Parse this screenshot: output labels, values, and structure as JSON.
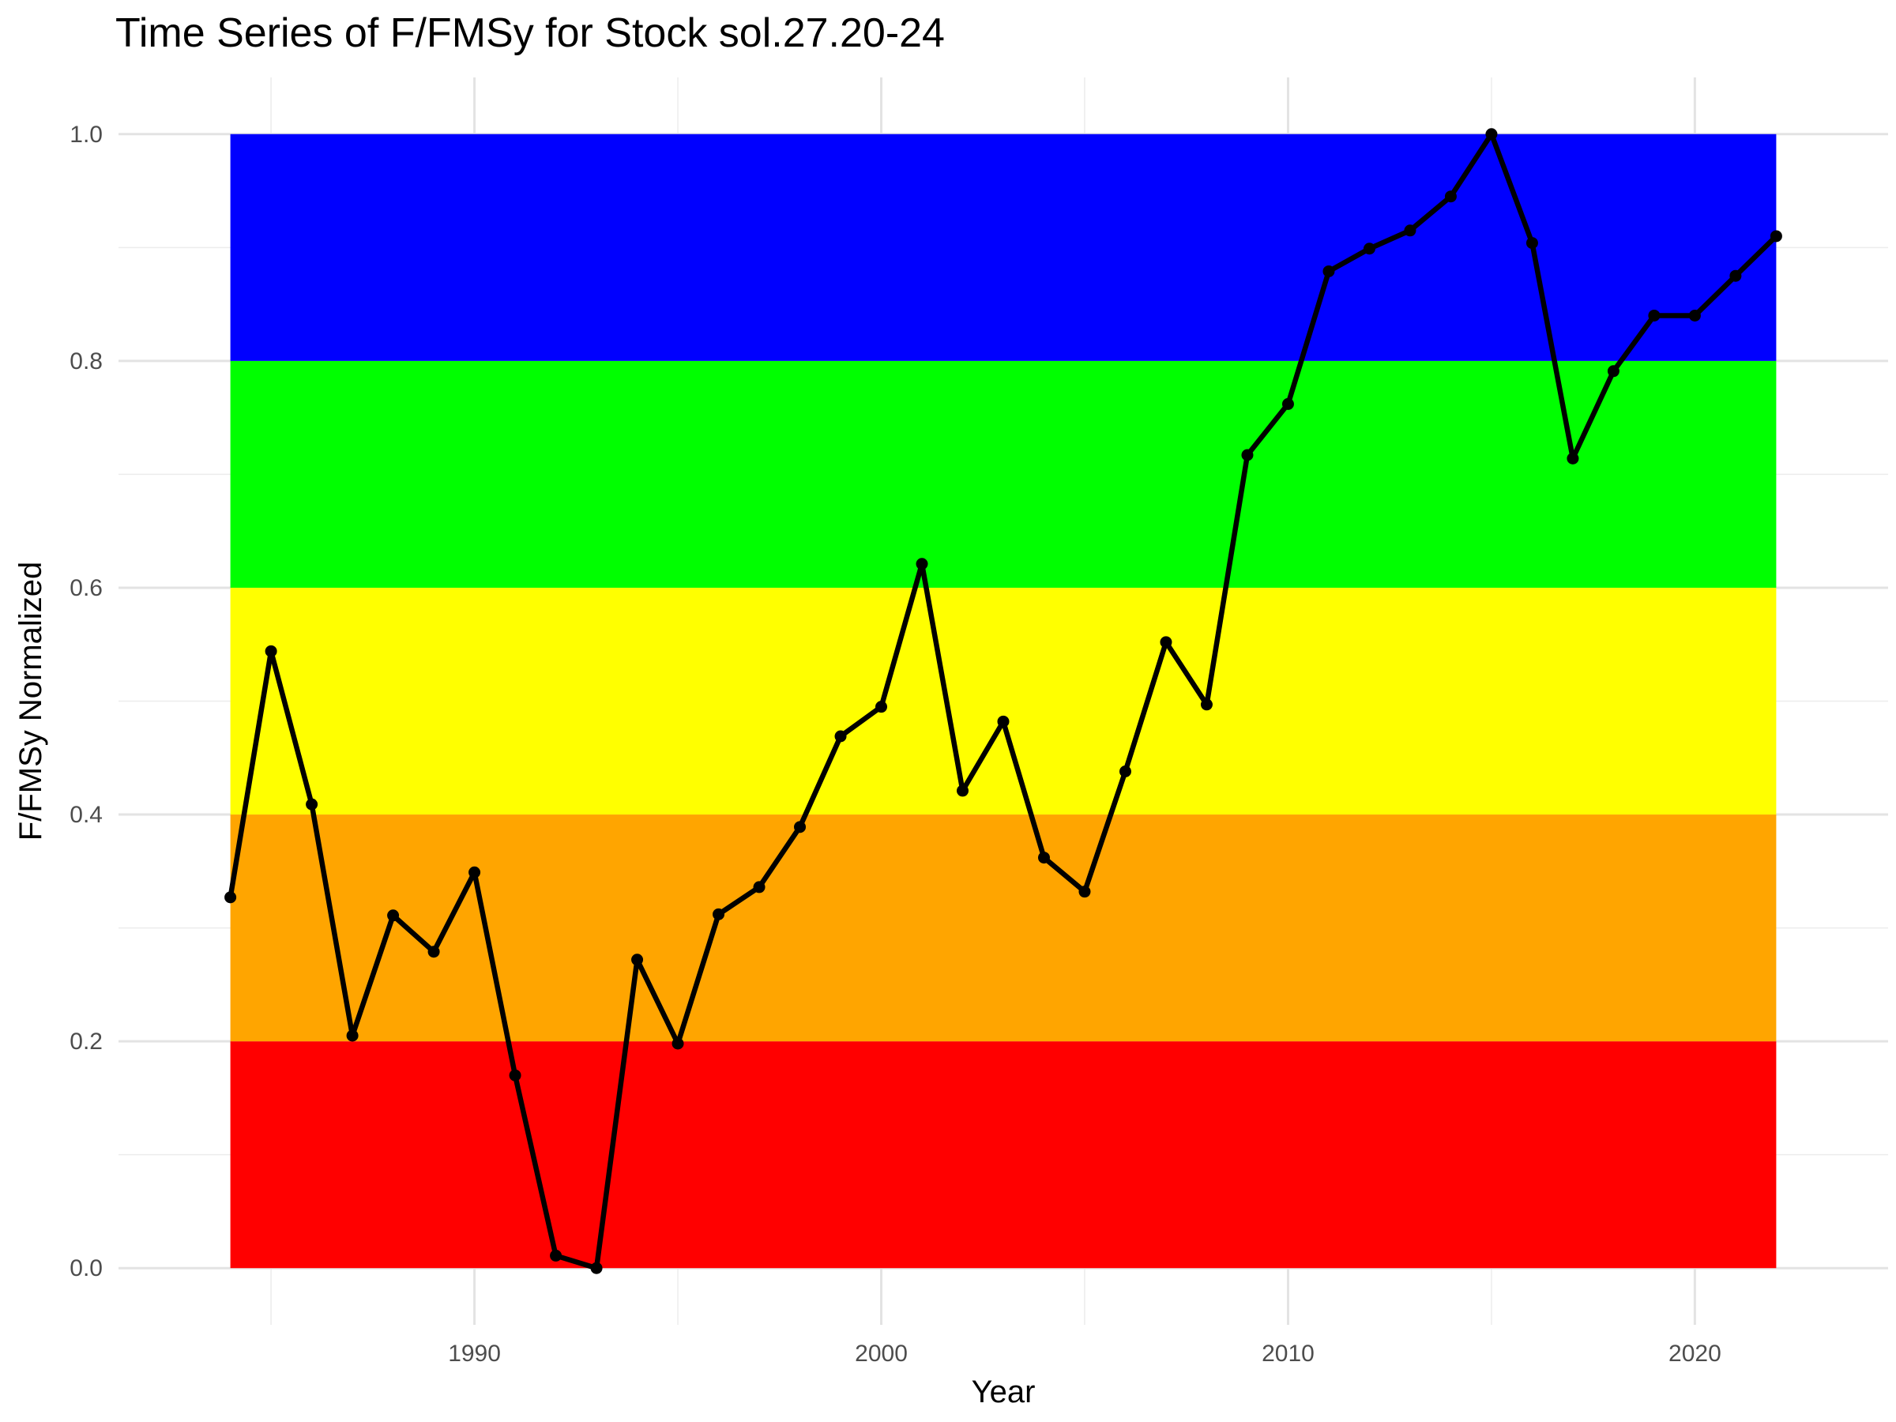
{
  "chart_data": {
    "type": "line",
    "title": "Time Series of F/FMSy for Stock sol.27.20-24",
    "xlabel": "Year",
    "ylabel": "F/FMSy Normalized",
    "xlim": [
      1981.25,
      2024.75
    ],
    "ylim": [
      -0.05,
      1.05
    ],
    "x_ticks": [
      1990,
      2000,
      2010,
      2020
    ],
    "y_ticks": [
      0.0,
      0.2,
      0.4,
      0.6,
      0.8,
      1.0
    ],
    "y_tick_labels": [
      "0.0",
      "0.2",
      "0.4",
      "0.6",
      "0.8",
      "1.0"
    ],
    "grid": true,
    "bands": [
      {
        "from": 0.0,
        "to": 0.2,
        "color": "#FF0000"
      },
      {
        "from": 0.2,
        "to": 0.4,
        "color": "#FFA500"
      },
      {
        "from": 0.4,
        "to": 0.6,
        "color": "#FFFF00"
      },
      {
        "from": 0.6,
        "to": 0.8,
        "color": "#00FF00"
      },
      {
        "from": 0.8,
        "to": 1.0,
        "color": "#0000FF"
      }
    ],
    "bands_x_range": [
      1984,
      2022
    ],
    "series": [
      {
        "color": "#000000",
        "x": [
          1984,
          1985,
          1986,
          1987,
          1988,
          1989,
          1990,
          1991,
          1992,
          1993,
          1994,
          1995,
          1996,
          1997,
          1998,
          1999,
          2000,
          2001,
          2002,
          2003,
          2004,
          2005,
          2006,
          2007,
          2008,
          2009,
          2010,
          2011,
          2012,
          2013,
          2014,
          2015,
          2016,
          2017,
          2018,
          2019,
          2020,
          2021,
          2022
        ],
        "y": [
          0.327,
          0.544,
          0.409,
          0.205,
          0.311,
          0.279,
          0.349,
          0.17,
          0.011,
          0.0,
          0.272,
          0.198,
          0.312,
          0.336,
          0.389,
          0.469,
          0.495,
          0.621,
          0.421,
          0.482,
          0.362,
          0.332,
          0.438,
          0.552,
          0.497,
          0.717,
          0.762,
          0.879,
          0.899,
          0.915,
          0.945,
          1.0,
          0.904,
          0.714,
          0.791,
          0.84,
          0.84,
          0.875,
          0.91
        ]
      }
    ]
  }
}
